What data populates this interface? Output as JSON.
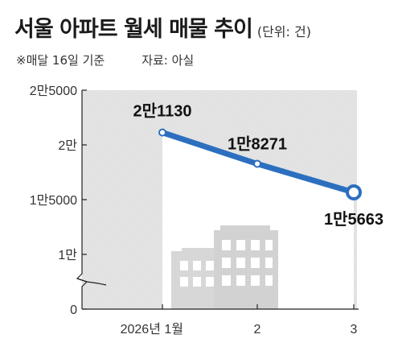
{
  "header": {
    "title": "서울 아파트 월세 매물 추이",
    "unit": "(단위: 건)",
    "note": "※매달 16일 기준",
    "source": "자료: 아실"
  },
  "chart_data": {
    "type": "line",
    "title": "서울 아파트 월세 매물 추이",
    "categories": [
      "2026년 1월",
      "2",
      "3"
    ],
    "values": [
      21130,
      18271,
      15663
    ],
    "value_labels": [
      "2만1130",
      "1만8271",
      "1만5663"
    ],
    "y_ticks": [
      0,
      10000,
      15000,
      20000,
      25000
    ],
    "y_tick_labels": [
      "0",
      "1만",
      "1만5000",
      "2만",
      "2만5000"
    ],
    "ylim": [
      0,
      25000
    ],
    "axis_break": true,
    "legend": "none",
    "colors": {
      "line": "#2c6fbf",
      "area": "#ffffff",
      "buildings": "#d6d6d6"
    }
  }
}
